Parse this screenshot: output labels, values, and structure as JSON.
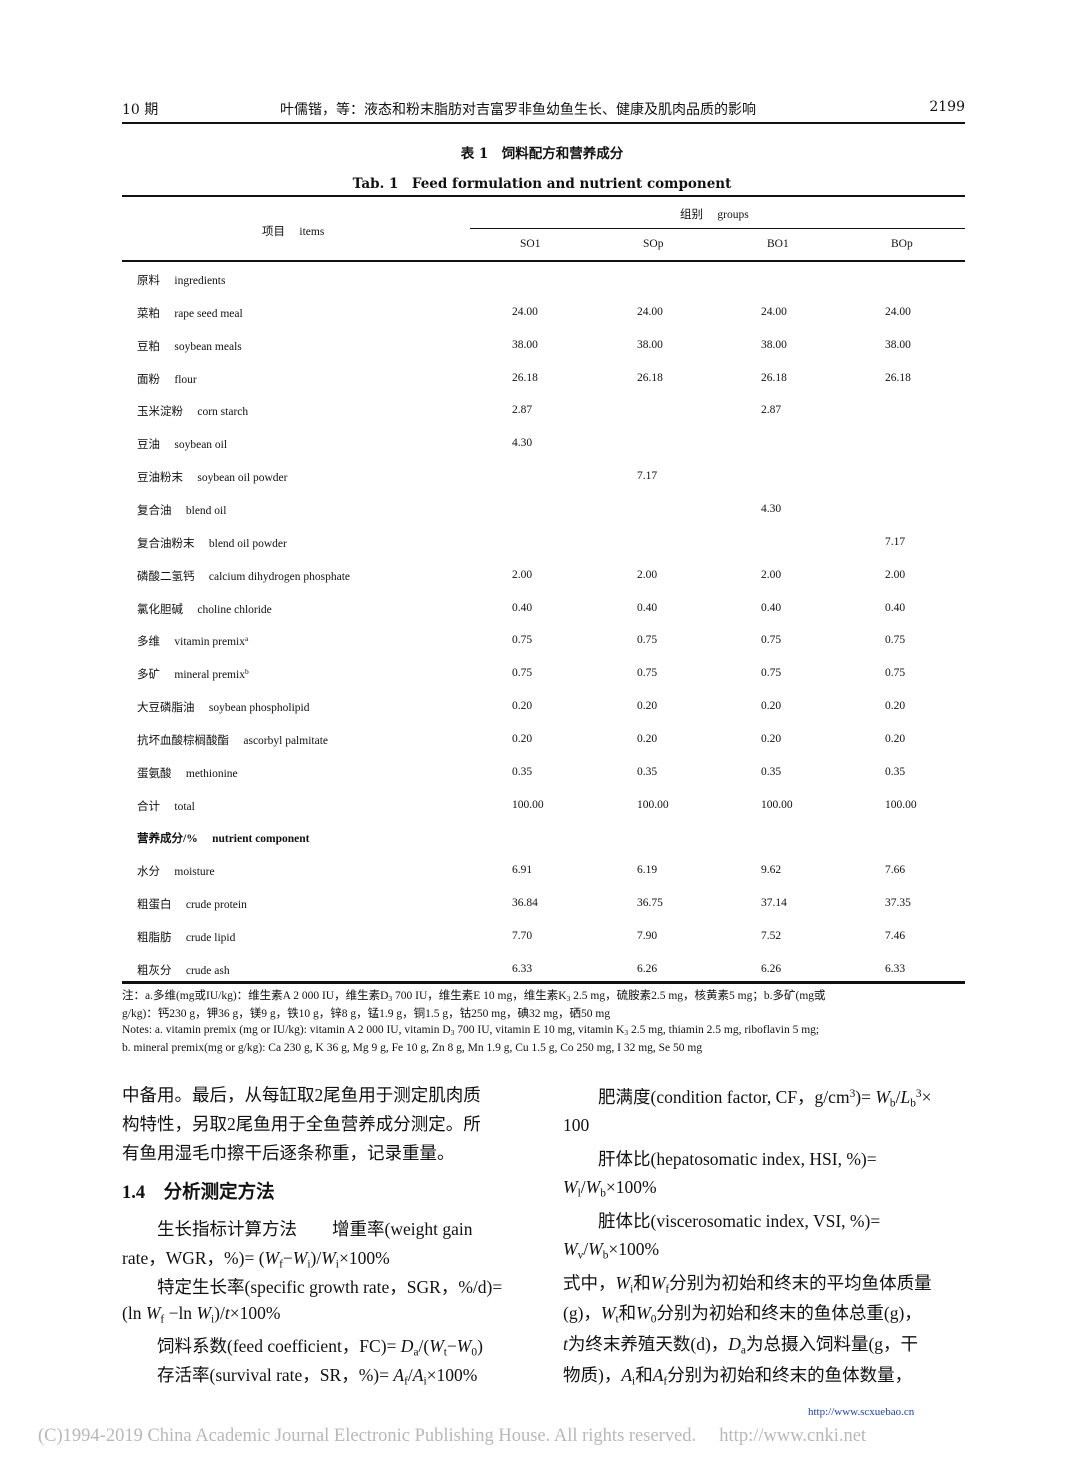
{
  "header": {
    "issue": "10 期",
    "title": "叶儒锴，等：液态和粉末脂肪对吉富罗非鱼幼鱼生长、健康及肌肉品质的影响",
    "page": "2199"
  },
  "table": {
    "caption_cn": "表 1　饲料配方和营养成分",
    "caption_en": "Tab. 1　Feed formulation and nutrient component",
    "items_header": "项目　 items",
    "groups_header": "组别　 groups",
    "columns": [
      "SO1",
      "SOp",
      "BO1",
      "BOp"
    ],
    "rows": [
      {
        "label": "原料　 ingredients",
        "values": [
          "",
          "",
          "",
          ""
        ],
        "section": true
      },
      {
        "label": "菜粕　 rape seed meal",
        "values": [
          "24.00",
          "24.00",
          "24.00",
          "24.00"
        ]
      },
      {
        "label": "豆粕　 soybean meals",
        "values": [
          "38.00",
          "38.00",
          "38.00",
          "38.00"
        ]
      },
      {
        "label": "面粉　 flour",
        "values": [
          "26.18",
          "26.18",
          "26.18",
          "26.18"
        ]
      },
      {
        "label": "玉米淀粉　 corn starch",
        "values": [
          "2.87",
          "",
          "2.87",
          ""
        ]
      },
      {
        "label": "豆油　 soybean oil",
        "values": [
          "4.30",
          "",
          "",
          ""
        ]
      },
      {
        "label": "豆油粉末　 soybean oil powder",
        "values": [
          "",
          "7.17",
          "",
          ""
        ]
      },
      {
        "label": "复合油　 blend oil",
        "values": [
          "",
          "",
          "4.30",
          ""
        ]
      },
      {
        "label": "复合油粉末　 blend oil powder",
        "values": [
          "",
          "",
          "",
          "7.17"
        ]
      },
      {
        "label": "磷酸二氢钙　 calcium dihydrogen phosphate",
        "values": [
          "2.00",
          "2.00",
          "2.00",
          "2.00"
        ]
      },
      {
        "label": "氯化胆碱　 choline chloride",
        "values": [
          "0.40",
          "0.40",
          "0.40",
          "0.40"
        ]
      },
      {
        "label": "多维　 vitamin premix",
        "sup": "a",
        "values": [
          "0.75",
          "0.75",
          "0.75",
          "0.75"
        ]
      },
      {
        "label": "多矿　 mineral premix",
        "sup": "b",
        "values": [
          "0.75",
          "0.75",
          "0.75",
          "0.75"
        ]
      },
      {
        "label": "大豆磷脂油　 soybean phospholipid",
        "values": [
          "0.20",
          "0.20",
          "0.20",
          "0.20"
        ]
      },
      {
        "label": "抗坏血酸棕榈酸酯　 ascorbyl palmitate",
        "values": [
          "0.20",
          "0.20",
          "0.20",
          "0.20"
        ]
      },
      {
        "label": "蛋氨酸　 methionine",
        "values": [
          "0.35",
          "0.35",
          "0.35",
          "0.35"
        ]
      },
      {
        "label": "合计　 total",
        "values": [
          "100.00",
          "100.00",
          "100.00",
          "100.00"
        ]
      },
      {
        "label": "营养成分/%　 nutrient component",
        "values": [
          "",
          "",
          "",
          ""
        ],
        "section": true,
        "bold": true
      },
      {
        "label": "水分　 moisture",
        "values": [
          "6.91",
          "6.19",
          "9.62",
          "7.66"
        ]
      },
      {
        "label": "粗蛋白　 crude protein",
        "values": [
          "36.84",
          "36.75",
          "37.14",
          "37.35"
        ]
      },
      {
        "label": "粗脂肪　 crude lipid",
        "values": [
          "7.70",
          "7.90",
          "7.52",
          "7.46"
        ]
      },
      {
        "label": "粗灰分　 crude ash",
        "values": [
          "6.33",
          "6.26",
          "6.26",
          "6.33"
        ]
      }
    ],
    "notes": [
      [
        [
          "注：a.多维(mg或IU/kg)：维生素A 2 000 IU，维生素D"
        ],
        [
          "3",
          "sub"
        ],
        [
          " 700 IU，维生素E 10 mg，维生素K"
        ],
        [
          "3",
          "sub"
        ],
        [
          " 2.5 mg，硫胺素2.5 mg，核黄素5 mg；b.多矿(mg或"
        ]
      ],
      [
        [
          "g/kg)：钙230 g，钾36 g，镁9 g，铁10 g，锌8 g，锰1.9 g，铜1.5 g，钴250 mg，碘32 mg，硒50 mg"
        ]
      ],
      [
        [
          "Notes: a. vitamin premix (mg or IU/kg): vitamin A 2 000 IU, vitamin D"
        ],
        [
          "3",
          "sub"
        ],
        [
          " 700 IU, vitamin E 10 mg, vitamin K"
        ],
        [
          "3",
          "sub"
        ],
        [
          " 2.5 mg, thiamin 2.5 mg, riboflavin 5 mg;"
        ]
      ],
      [
        [
          "b. mineral premix(mg or g/kg): Ca 230 g, K 36 g, Mg 9 g, Fe 10 g, Zn 8 g, Mn 1.9 g, Cu 1.5 g, Co 250 mg, I 32 mg, Se 50 mg"
        ]
      ]
    ]
  },
  "body": {
    "left": [
      [
        [
          "中备用。最后，从每缸取2尾鱼用于测定肌肉质"
        ]
      ],
      [
        [
          "构特性，另取2尾鱼用于全鱼营养成分测定。所"
        ]
      ],
      [
        [
          "有鱼用湿毛巾擦干后逐条称重，记录重量。"
        ]
      ],
      [
        [
          "1.4　分析测定方法",
          "h"
        ]
      ],
      [
        [
          "　　生长指标计算方法　　增重率(weight gain"
        ]
      ],
      [
        [
          "rate，WGR，%)= ("
        ],
        [
          "W",
          "i"
        ],
        [
          "f",
          "sub"
        ],
        [
          "−"
        ],
        [
          "W",
          "i"
        ],
        [
          "i",
          "sub"
        ],
        [
          ")/"
        ],
        [
          "W",
          "i"
        ],
        [
          "i",
          "sub"
        ],
        [
          "×100%"
        ]
      ],
      [
        [
          "　　特定生长率(specific growth rate，SGR，%/d)="
        ]
      ],
      [
        [
          "(ln "
        ],
        [
          "W",
          "i"
        ],
        [
          "f",
          "sub"
        ],
        [
          " −ln "
        ],
        [
          "W",
          "i"
        ],
        [
          "i",
          "sub"
        ],
        [
          ")/"
        ],
        [
          "t",
          "i"
        ],
        [
          "×100%"
        ]
      ],
      [
        [
          "　　饲料系数(feed coefficient，FC)= "
        ],
        [
          "D",
          "i"
        ],
        [
          "a",
          "sub"
        ],
        [
          "/("
        ],
        [
          "W",
          "i"
        ],
        [
          "t",
          "sub"
        ],
        [
          "−"
        ],
        [
          "W",
          "i"
        ],
        [
          "0",
          "sub"
        ],
        [
          ")"
        ]
      ],
      [
        [
          "　　存活率(survival rate，SR，%)= "
        ],
        [
          "A",
          "i"
        ],
        [
          "f",
          "sub"
        ],
        [
          "/"
        ],
        [
          "A",
          "i"
        ],
        [
          "i",
          "sub"
        ],
        [
          "×100%"
        ]
      ]
    ],
    "right": [
      [
        [
          "　　肥满度(condition factor, CF，g/cm"
        ],
        [
          "3",
          "sup"
        ],
        [
          ")= "
        ],
        [
          "W",
          "i"
        ],
        [
          "b",
          "sub"
        ],
        [
          "/"
        ],
        [
          "L",
          "i"
        ],
        [
          "b",
          "sub"
        ],
        [
          "3",
          "sup"
        ],
        [
          "×"
        ]
      ],
      [
        [
          "100"
        ]
      ],
      [
        [
          "　　肝体比(hepatosomatic index, HSI, %)="
        ]
      ],
      [
        [
          "W",
          "i"
        ],
        [
          "l",
          "sub"
        ],
        [
          "/"
        ],
        [
          "W",
          "i"
        ],
        [
          "b",
          "sub"
        ],
        [
          "×100%"
        ]
      ],
      [
        [
          "　　脏体比(viscerosomatic index, VSI, %)="
        ]
      ],
      [
        [
          "W",
          "i"
        ],
        [
          "v",
          "sub"
        ],
        [
          "/"
        ],
        [
          "W",
          "i"
        ],
        [
          "b",
          "sub"
        ],
        [
          "×100%"
        ]
      ],
      [
        [
          "式中，"
        ],
        [
          "W",
          "i"
        ],
        [
          "i",
          "sub"
        ],
        [
          "和"
        ],
        [
          "W",
          "i"
        ],
        [
          "f",
          "sub"
        ],
        [
          "分别为初始和终末的平均鱼体质量"
        ]
      ],
      [
        [
          "(g)，"
        ],
        [
          "W",
          "i"
        ],
        [
          "t",
          "sub"
        ],
        [
          "和"
        ],
        [
          "W",
          "i"
        ],
        [
          "0",
          "sub"
        ],
        [
          "分别为初始和终末的鱼体总重(g)，"
        ]
      ],
      [
        [
          "t",
          "i"
        ],
        [
          "为终末养殖天数(d)，"
        ],
        [
          "D",
          "i"
        ],
        [
          "a",
          "sub"
        ],
        [
          "为总摄入饲料量(g，干"
        ]
      ],
      [
        [
          "物质)，"
        ],
        [
          "A",
          "i"
        ],
        [
          "i",
          "sub"
        ],
        [
          "和"
        ],
        [
          "A",
          "i"
        ],
        [
          "f",
          "sub"
        ],
        [
          "分别为初始和终末的鱼体数量，"
        ]
      ]
    ]
  },
  "footer": {
    "journal_url": "http://www.scxuebao.cn",
    "copyright": "(C)1994-2019 China Academic Journal Electronic Publishing House. All rights reserved.　 http://www.cnki.net"
  },
  "colors": {
    "link": "#1a3fb0",
    "watermark": "#b8b8b8"
  }
}
